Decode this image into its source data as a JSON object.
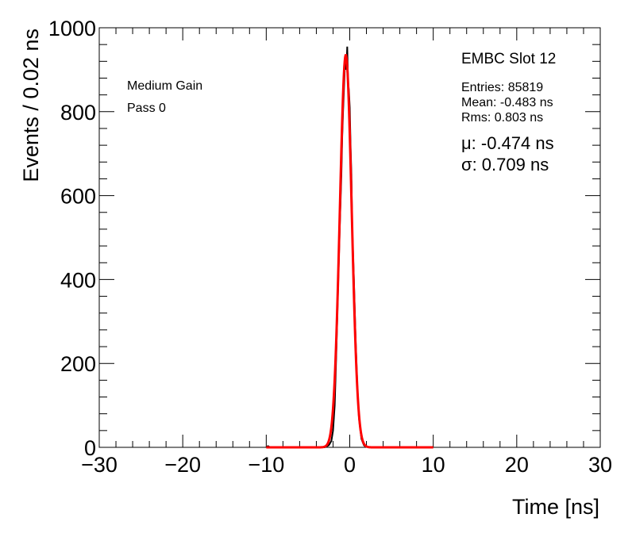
{
  "chart_data": {
    "type": "histogram",
    "xlabel": "Time [ns]",
    "ylabel": "Events / 0.02 ns",
    "xlim": [
      -30,
      30
    ],
    "ylim": [
      0,
      1000
    ],
    "x_ticks": [
      -30,
      -20,
      -10,
      0,
      10,
      20,
      30
    ],
    "x_tick_labels": [
      "−30",
      "−20",
      "−10",
      "0",
      "10",
      "20",
      "30"
    ],
    "y_ticks": [
      0,
      200,
      400,
      600,
      800,
      1000
    ],
    "y_tick_labels": [
      "0",
      "200",
      "400",
      "600",
      "800",
      "1000"
    ],
    "grid": false,
    "annotations": {
      "gain": "Medium Gain",
      "pass": "Pass 0",
      "slot": "EMBC Slot 12",
      "entries": "Entries: 85819",
      "mean": "Mean: -0.483 ns",
      "rms": "Rms: 0.803 ns",
      "mu": "μ: -0.474 ns",
      "sigma": "σ: 0.709 ns"
    },
    "series": [
      {
        "kind": "histogram",
        "color": "#000000",
        "bin_width": 0.02,
        "peak_x": -0.3,
        "peak_y": 955,
        "points": [
          [
            -10.0,
            0
          ],
          [
            -9.8,
            3
          ],
          [
            -9.5,
            0
          ],
          [
            -3.0,
            0
          ],
          [
            -2.5,
            5
          ],
          [
            -2.2,
            15
          ],
          [
            -2.0,
            40
          ],
          [
            -1.8,
            100
          ],
          [
            -1.6,
            230
          ],
          [
            -1.4,
            380
          ],
          [
            -1.2,
            520
          ],
          [
            -1.0,
            650
          ],
          [
            -0.9,
            740
          ],
          [
            -0.8,
            800
          ],
          [
            -0.7,
            850
          ],
          [
            -0.6,
            900
          ],
          [
            -0.5,
            920
          ],
          [
            -0.4,
            900
          ],
          [
            -0.3,
            955
          ],
          [
            -0.2,
            870
          ],
          [
            -0.1,
            850
          ],
          [
            0.0,
            810
          ],
          [
            0.1,
            720
          ],
          [
            0.2,
            650
          ],
          [
            0.3,
            520
          ],
          [
            0.5,
            400
          ],
          [
            0.7,
            260
          ],
          [
            0.9,
            150
          ],
          [
            1.1,
            70
          ],
          [
            1.4,
            20
          ],
          [
            1.7,
            5
          ],
          [
            2.0,
            0
          ]
        ]
      },
      {
        "kind": "fit",
        "model": "gaussian",
        "color": "#ff0000",
        "mu": -0.474,
        "sigma": 0.709,
        "amplitude": 935,
        "x_range": [
          -10,
          10
        ]
      }
    ]
  }
}
